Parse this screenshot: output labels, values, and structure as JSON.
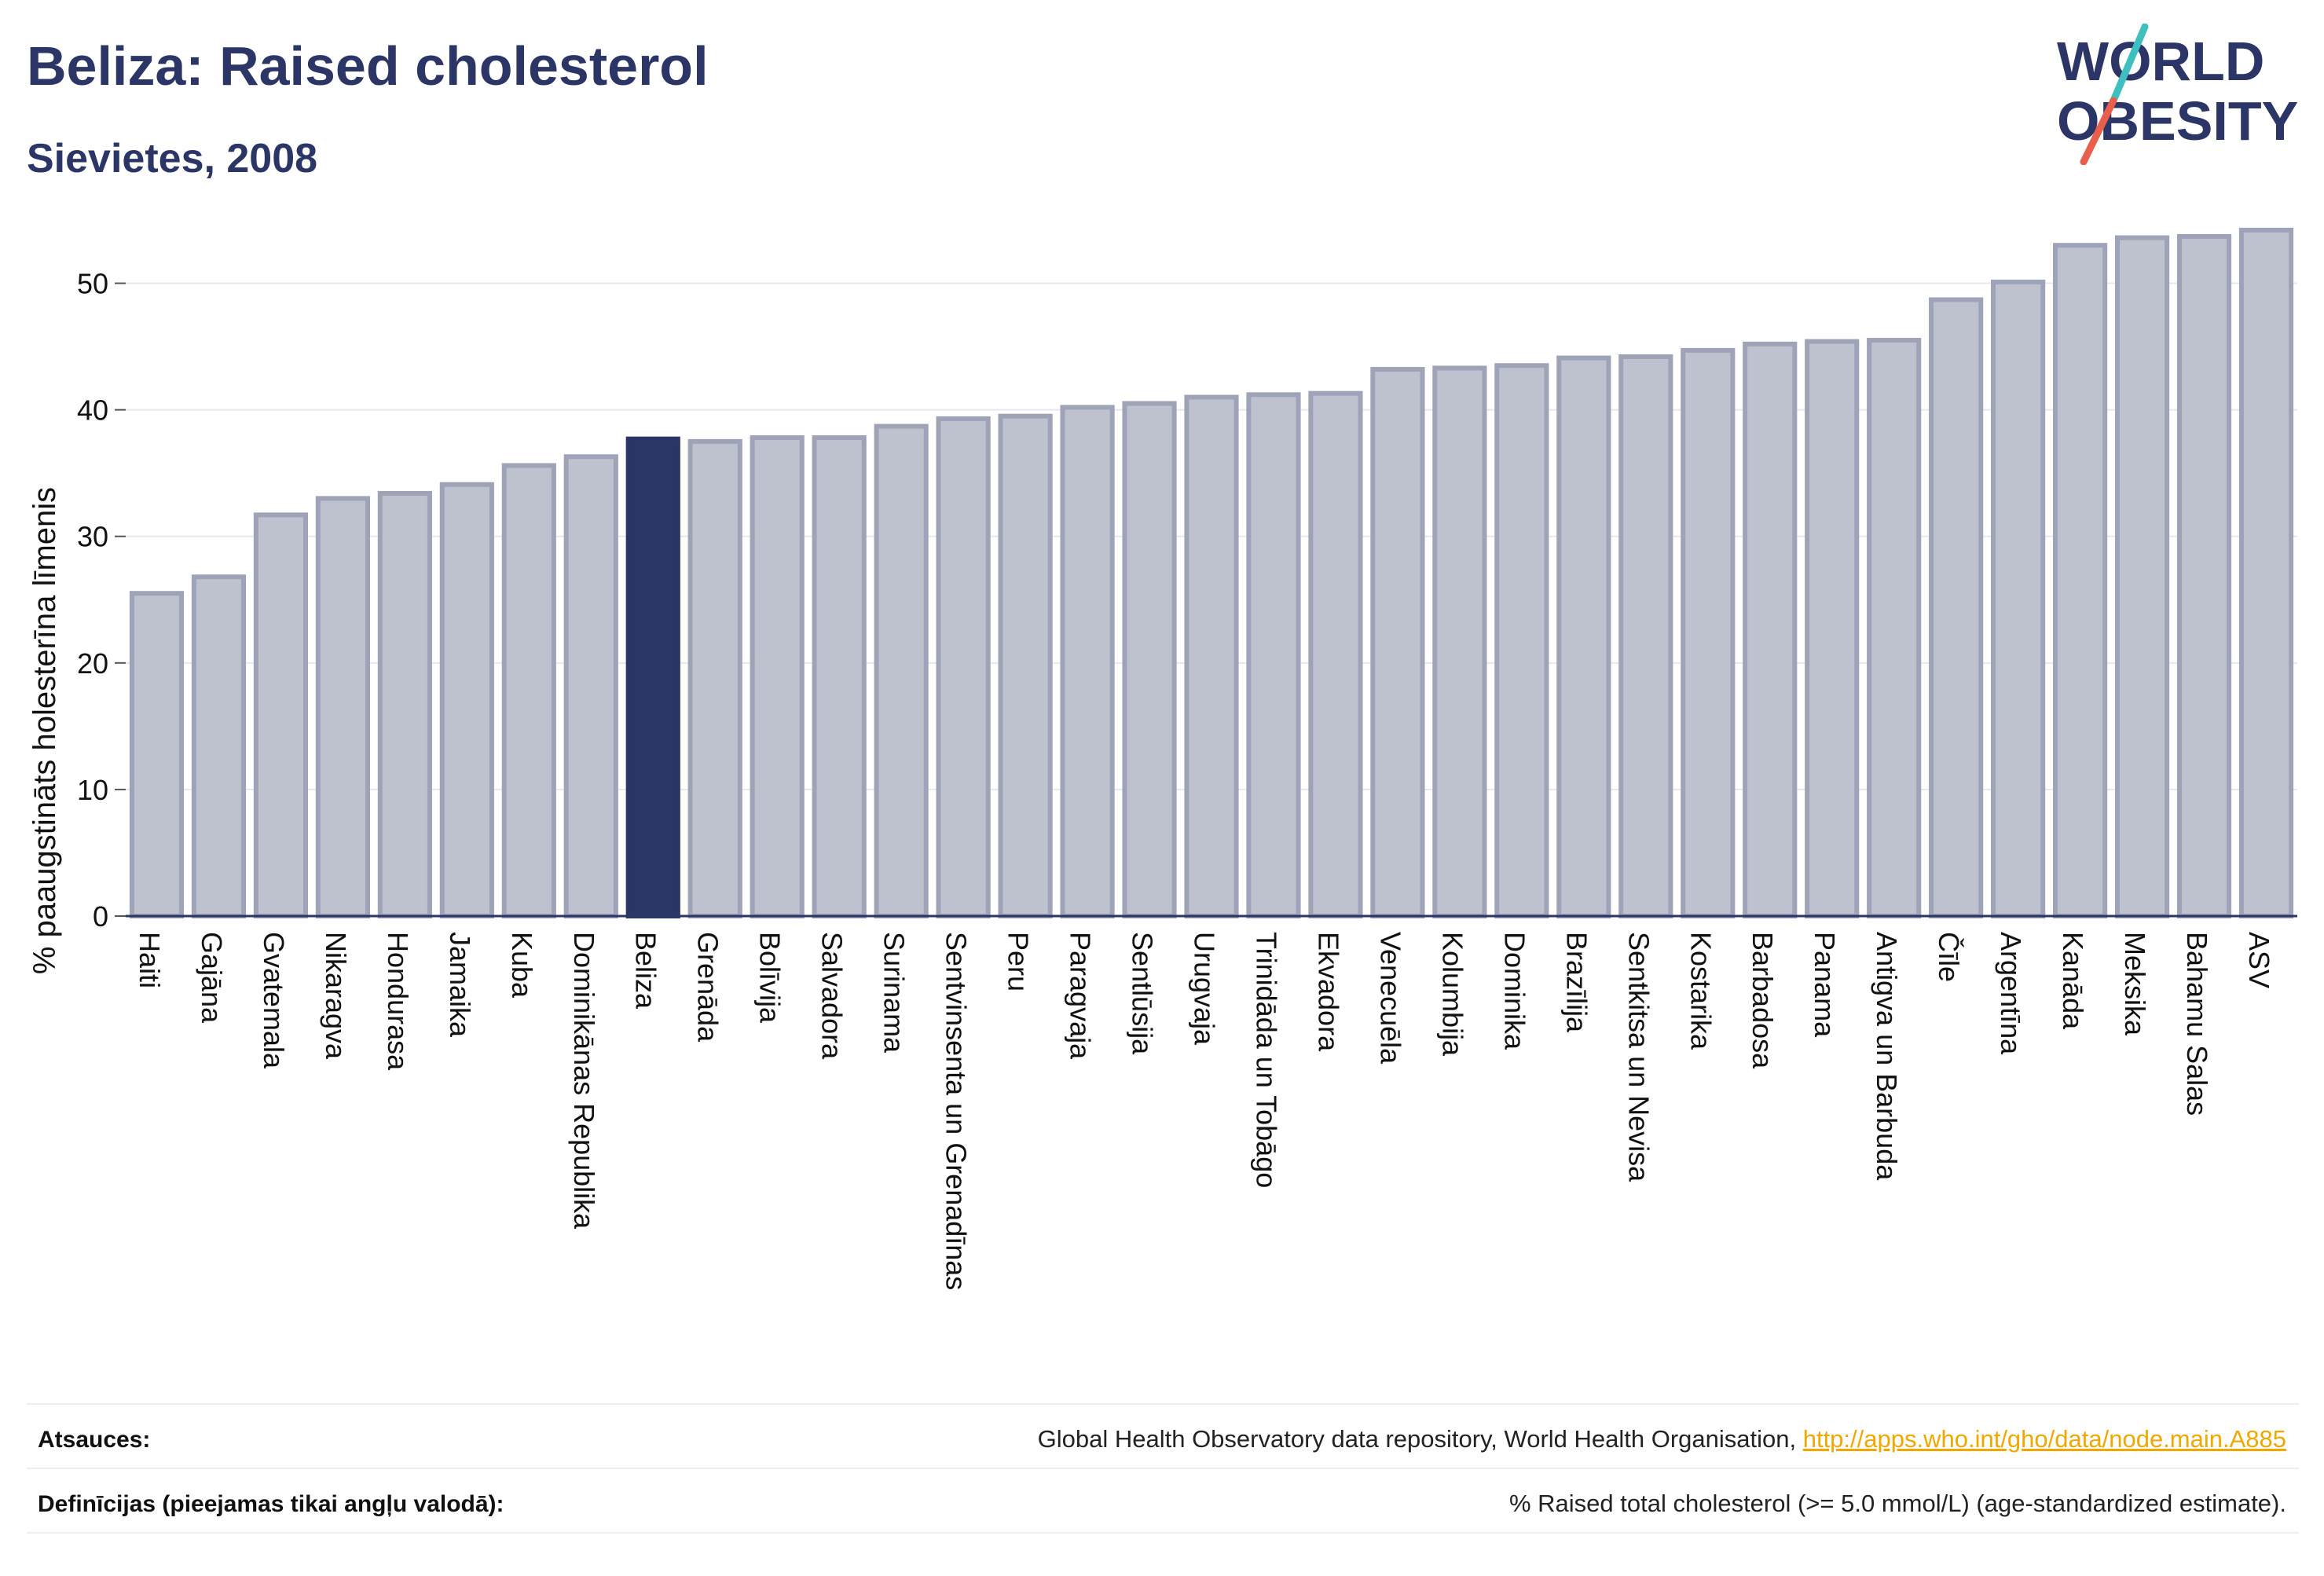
{
  "header": {
    "title": "Beliza: Raised cholesterol",
    "subtitle": "Sievietes, 2008"
  },
  "logo": {
    "line1": "WORLD",
    "line2": "OBESITY"
  },
  "colors": {
    "bar": "#bec2cf",
    "bar_border": "#9ea3b8",
    "highlight": "#2b3566",
    "title": "#2b3566",
    "link": "#f0a800",
    "logo_teal": "#3fbfbf",
    "logo_red": "#e8604c"
  },
  "chart_data": {
    "type": "bar",
    "title": "",
    "xlabel": "",
    "ylabel": "% paaugstināts holesterīna līmenis",
    "ylim": [
      0,
      55
    ],
    "yticks": [
      0,
      10,
      20,
      30,
      40,
      50
    ],
    "grid": true,
    "highlight": "Beliza",
    "categories": [
      "Haiti",
      "Gajāna",
      "Gvatemala",
      "Nikaragva",
      "Hondurasa",
      "Jamaika",
      "Kuba",
      "Dominikānas Republika",
      "Beliza",
      "Grenāda",
      "Bolīvija",
      "Salvadora",
      "Surinama",
      "Sentvinsenta un Grenadīnas",
      "Peru",
      "Paragvaja",
      "Sentlūsija",
      "Urugvaja",
      "Trinidāda un Tobāgo",
      "Ekvadora",
      "Venecuēla",
      "Kolumbija",
      "Dominika",
      "Brazīlija",
      "Sentkitsa un Nevisa",
      "Kostarika",
      "Barbadosa",
      "Panama",
      "Antigva un Barbuda",
      "Čīle",
      "Argentīna",
      "Kanāda",
      "Meksika",
      "Bahamu Salas",
      "ASV"
    ],
    "values": [
      25.5,
      26.8,
      31.7,
      33.0,
      33.4,
      34.1,
      35.6,
      36.3,
      37.7,
      37.5,
      37.8,
      37.8,
      38.7,
      39.3,
      39.5,
      40.2,
      40.5,
      41.0,
      41.2,
      41.3,
      43.2,
      43.3,
      43.5,
      44.1,
      44.2,
      44.7,
      45.2,
      45.4,
      45.5,
      48.7,
      50.1,
      53.0,
      53.6,
      53.7,
      54.2
    ]
  },
  "footer": {
    "sources_label": "Atsauces:",
    "sources_text": "Global Health Observatory data repository, World Health Organisation, ",
    "sources_link": "http://apps.who.int/gho/data/node.main.A885",
    "definitions_label": "Definīcijas (pieejamas tikai angļu valodā):",
    "definitions_text": "% Raised total cholesterol (>= 5.0 mmol/L) (age-standardized estimate)."
  }
}
